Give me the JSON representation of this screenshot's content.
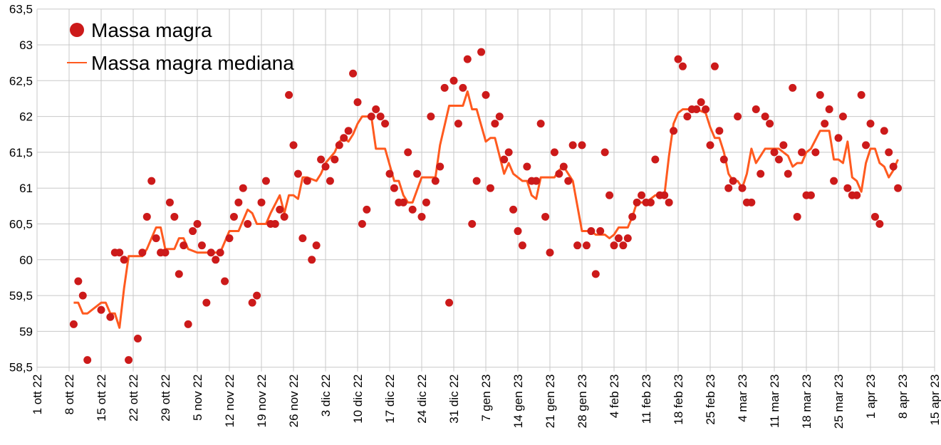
{
  "chart_data": {
    "type": "scatter",
    "title": "",
    "xlabel": "",
    "ylabel": "",
    "x_unit": "days since 1 ott 22",
    "xlim": [
      0,
      196
    ],
    "ylim": [
      58.5,
      63.5
    ],
    "grid": true,
    "legend_position": "top-left",
    "y_ticks": [
      "58,5",
      "59",
      "59,5",
      "60",
      "60,5",
      "61",
      "61,5",
      "62",
      "62,5",
      "63",
      "63,5"
    ],
    "x_ticks": [
      "1 ott 22",
      "8 ott 22",
      "15 ott 22",
      "22 ott 22",
      "29 ott 22",
      "5 nov 22",
      "12 nov 22",
      "19 nov 22",
      "26 nov 22",
      "3 dic 22",
      "10 dic 22",
      "17 dic 22",
      "24 dic 22",
      "31 dic 22",
      "7 gen 23",
      "14 gen 23",
      "21 gen 23",
      "28 gen 23",
      "4 feb 23",
      "11 feb 23",
      "18 feb 23",
      "25 feb 23",
      "4 mar 23",
      "11 mar 23",
      "18 mar 23",
      "25 mar 23",
      "1 apr 23",
      "8 apr 23",
      "15 apr 23"
    ],
    "series": [
      {
        "name": "Massa magra",
        "kind": "scatter",
        "color": "#cc1a1a",
        "points": [
          [
            8,
            59.1
          ],
          [
            9,
            59.7
          ],
          [
            10,
            59.5
          ],
          [
            11,
            58.6
          ],
          [
            14,
            59.3
          ],
          [
            16,
            59.2
          ],
          [
            17,
            60.1
          ],
          [
            18,
            60.1
          ],
          [
            19,
            60.0
          ],
          [
            20,
            58.6
          ],
          [
            22,
            58.9
          ],
          [
            23,
            60.1
          ],
          [
            24,
            60.6
          ],
          [
            25,
            61.1
          ],
          [
            26,
            60.3
          ],
          [
            27,
            60.1
          ],
          [
            28,
            60.1
          ],
          [
            29,
            60.8
          ],
          [
            30,
            60.6
          ],
          [
            31,
            59.8
          ],
          [
            32,
            60.2
          ],
          [
            33,
            59.1
          ],
          [
            34,
            60.4
          ],
          [
            35,
            60.5
          ],
          [
            36,
            60.2
          ],
          [
            37,
            59.4
          ],
          [
            38,
            60.1
          ],
          [
            39,
            60.0
          ],
          [
            40,
            60.1
          ],
          [
            41,
            59.7
          ],
          [
            42,
            60.3
          ],
          [
            43,
            60.6
          ],
          [
            44,
            60.8
          ],
          [
            45,
            61.0
          ],
          [
            46,
            60.5
          ],
          [
            47,
            59.4
          ],
          [
            48,
            59.5
          ],
          [
            49,
            60.8
          ],
          [
            50,
            61.1
          ],
          [
            51,
            60.5
          ],
          [
            52,
            60.5
          ],
          [
            53,
            60.7
          ],
          [
            54,
            60.6
          ],
          [
            55,
            62.3
          ],
          [
            56,
            61.6
          ],
          [
            57,
            61.2
          ],
          [
            58,
            60.3
          ],
          [
            59,
            61.1
          ],
          [
            60,
            60.0
          ],
          [
            61,
            60.2
          ],
          [
            62,
            61.4
          ],
          [
            63,
            61.3
          ],
          [
            64,
            61.1
          ],
          [
            65,
            61.4
          ],
          [
            66,
            61.6
          ],
          [
            67,
            61.7
          ],
          [
            68,
            61.8
          ],
          [
            69,
            62.6
          ],
          [
            70,
            62.2
          ],
          [
            71,
            60.5
          ],
          [
            72,
            60.7
          ],
          [
            73,
            62.0
          ],
          [
            74,
            62.1
          ],
          [
            75,
            62.0
          ],
          [
            76,
            61.9
          ],
          [
            77,
            61.2
          ],
          [
            78,
            61.0
          ],
          [
            79,
            60.8
          ],
          [
            80,
            60.8
          ],
          [
            81,
            61.5
          ],
          [
            82,
            60.7
          ],
          [
            83,
            61.2
          ],
          [
            84,
            60.6
          ],
          [
            85,
            60.8
          ],
          [
            86,
            62.0
          ],
          [
            87,
            61.1
          ],
          [
            88,
            61.3
          ],
          [
            89,
            62.4
          ],
          [
            90,
            59.4
          ],
          [
            91,
            62.5
          ],
          [
            92,
            61.9
          ],
          [
            93,
            62.4
          ],
          [
            94,
            62.8
          ],
          [
            95,
            60.5
          ],
          [
            96,
            61.1
          ],
          [
            97,
            62.9
          ],
          [
            98,
            62.3
          ],
          [
            99,
            61.0
          ],
          [
            100,
            61.9
          ],
          [
            101,
            62.0
          ],
          [
            102,
            61.4
          ],
          [
            103,
            61.5
          ],
          [
            104,
            60.7
          ],
          [
            105,
            60.4
          ],
          [
            106,
            60.2
          ],
          [
            107,
            61.3
          ],
          [
            108,
            61.1
          ],
          [
            109,
            61.1
          ],
          [
            110,
            61.9
          ],
          [
            111,
            60.6
          ],
          [
            112,
            60.1
          ],
          [
            113,
            61.5
          ],
          [
            114,
            61.2
          ],
          [
            115,
            61.3
          ],
          [
            116,
            61.1
          ],
          [
            117,
            61.6
          ],
          [
            118,
            60.2
          ],
          [
            119,
            61.6
          ],
          [
            120,
            60.2
          ],
          [
            121,
            60.4
          ],
          [
            122,
            59.8
          ],
          [
            123,
            60.4
          ],
          [
            124,
            61.5
          ],
          [
            125,
            60.9
          ],
          [
            126,
            60.2
          ],
          [
            127,
            60.3
          ],
          [
            128,
            60.2
          ],
          [
            129,
            60.3
          ],
          [
            130,
            60.6
          ],
          [
            131,
            60.8
          ],
          [
            132,
            60.9
          ],
          [
            133,
            60.8
          ],
          [
            134,
            60.8
          ],
          [
            135,
            61.4
          ],
          [
            136,
            60.9
          ],
          [
            137,
            60.9
          ],
          [
            138,
            60.8
          ],
          [
            139,
            61.8
          ],
          [
            140,
            62.8
          ],
          [
            141,
            62.7
          ],
          [
            142,
            62.0
          ],
          [
            143,
            62.1
          ],
          [
            144,
            62.1
          ],
          [
            145,
            62.2
          ],
          [
            146,
            62.1
          ],
          [
            147,
            61.6
          ],
          [
            148,
            62.7
          ],
          [
            149,
            61.8
          ],
          [
            150,
            61.4
          ],
          [
            151,
            61.0
          ],
          [
            152,
            61.1
          ],
          [
            153,
            62.0
          ],
          [
            154,
            61.0
          ],
          [
            155,
            60.8
          ],
          [
            156,
            60.8
          ],
          [
            157,
            62.1
          ],
          [
            158,
            61.2
          ],
          [
            159,
            62.0
          ],
          [
            160,
            61.9
          ],
          [
            161,
            61.5
          ],
          [
            162,
            61.4
          ],
          [
            163,
            61.6
          ],
          [
            164,
            61.2
          ],
          [
            165,
            62.4
          ],
          [
            166,
            60.6
          ],
          [
            167,
            61.5
          ],
          [
            168,
            60.9
          ],
          [
            169,
            60.9
          ],
          [
            170,
            61.5
          ],
          [
            171,
            62.3
          ],
          [
            172,
            61.9
          ],
          [
            173,
            62.1
          ],
          [
            174,
            61.1
          ],
          [
            175,
            61.7
          ],
          [
            176,
            62.0
          ],
          [
            177,
            61.0
          ],
          [
            178,
            60.9
          ],
          [
            179,
            60.9
          ],
          [
            180,
            62.3
          ],
          [
            181,
            61.6
          ],
          [
            182,
            61.9
          ],
          [
            183,
            60.6
          ],
          [
            184,
            60.5
          ],
          [
            185,
            61.8
          ],
          [
            186,
            61.5
          ],
          [
            187,
            61.3
          ],
          [
            188,
            61.0
          ]
        ]
      },
      {
        "name": "Massa magra mediana",
        "kind": "line",
        "color": "#ff5a1f",
        "points": [
          [
            8,
            59.4
          ],
          [
            9,
            59.4
          ],
          [
            10,
            59.25
          ],
          [
            11,
            59.25
          ],
          [
            14,
            59.4
          ],
          [
            15,
            59.4
          ],
          [
            16,
            59.25
          ],
          [
            17,
            59.25
          ],
          [
            18,
            59.05
          ],
          [
            19,
            59.6
          ],
          [
            20,
            60.05
          ],
          [
            23,
            60.05
          ],
          [
            24,
            60.15
          ],
          [
            26,
            60.45
          ],
          [
            27,
            60.45
          ],
          [
            28,
            60.15
          ],
          [
            30,
            60.15
          ],
          [
            31,
            60.3
          ],
          [
            32,
            60.3
          ],
          [
            33,
            60.15
          ],
          [
            35,
            60.1
          ],
          [
            40,
            60.1
          ],
          [
            42,
            60.4
          ],
          [
            44,
            60.4
          ],
          [
            46,
            60.7
          ],
          [
            47,
            60.65
          ],
          [
            48,
            60.5
          ],
          [
            50,
            60.5
          ],
          [
            51,
            60.65
          ],
          [
            53,
            60.9
          ],
          [
            54,
            60.65
          ],
          [
            55,
            60.9
          ],
          [
            56,
            60.9
          ],
          [
            57,
            60.85
          ],
          [
            58,
            61.15
          ],
          [
            59,
            61.15
          ],
          [
            61,
            61.1
          ],
          [
            62,
            61.2
          ],
          [
            63,
            61.35
          ],
          [
            65,
            61.5
          ],
          [
            66,
            61.65
          ],
          [
            67,
            61.7
          ],
          [
            68,
            61.65
          ],
          [
            69,
            61.75
          ],
          [
            70,
            61.9
          ],
          [
            71,
            62.0
          ],
          [
            73,
            62.0
          ],
          [
            74,
            61.55
          ],
          [
            76,
            61.55
          ],
          [
            78,
            61.1
          ],
          [
            79,
            61.1
          ],
          [
            80,
            60.9
          ],
          [
            81,
            60.8
          ],
          [
            82,
            60.8
          ],
          [
            84,
            61.15
          ],
          [
            87,
            61.15
          ],
          [
            88,
            61.6
          ],
          [
            90,
            62.15
          ],
          [
            93,
            62.15
          ],
          [
            94,
            62.35
          ],
          [
            95,
            62.1
          ],
          [
            96,
            62.1
          ],
          [
            98,
            61.65
          ],
          [
            99,
            61.7
          ],
          [
            100,
            61.7
          ],
          [
            102,
            61.2
          ],
          [
            103,
            61.35
          ],
          [
            104,
            61.2
          ],
          [
            106,
            61.1
          ],
          [
            107,
            61.1
          ],
          [
            108,
            60.9
          ],
          [
            109,
            60.85
          ],
          [
            110,
            61.15
          ],
          [
            113,
            61.15
          ],
          [
            114,
            61.25
          ],
          [
            115,
            61.3
          ],
          [
            116,
            61.2
          ],
          [
            117,
            61.1
          ],
          [
            119,
            60.4
          ],
          [
            121,
            60.4
          ],
          [
            122,
            60.35
          ],
          [
            124,
            60.35
          ],
          [
            125,
            60.3
          ],
          [
            126,
            60.35
          ],
          [
            127,
            60.45
          ],
          [
            129,
            60.45
          ],
          [
            130,
            60.6
          ],
          [
            131,
            60.8
          ],
          [
            133,
            60.8
          ],
          [
            134,
            60.85
          ],
          [
            135,
            60.9
          ],
          [
            137,
            60.9
          ],
          [
            138,
            61.45
          ],
          [
            139,
            61.9
          ],
          [
            140,
            62.05
          ],
          [
            141,
            62.1
          ],
          [
            144,
            62.1
          ],
          [
            146,
            62.05
          ],
          [
            147,
            61.85
          ],
          [
            148,
            61.7
          ],
          [
            149,
            61.7
          ],
          [
            150,
            61.5
          ],
          [
            151,
            61.2
          ],
          [
            152,
            61.1
          ],
          [
            153,
            61.1
          ],
          [
            154,
            61.0
          ],
          [
            155,
            61.2
          ],
          [
            156,
            61.55
          ],
          [
            157,
            61.35
          ],
          [
            158,
            61.45
          ],
          [
            159,
            61.55
          ],
          [
            162,
            61.55
          ],
          [
            163,
            61.5
          ],
          [
            164,
            61.45
          ],
          [
            165,
            61.3
          ],
          [
            166,
            61.35
          ],
          [
            167,
            61.35
          ],
          [
            168,
            61.5
          ],
          [
            169,
            61.55
          ],
          [
            171,
            61.8
          ],
          [
            173,
            61.8
          ],
          [
            174,
            61.4
          ],
          [
            175,
            61.4
          ],
          [
            176,
            61.35
          ],
          [
            177,
            61.65
          ],
          [
            178,
            61.15
          ],
          [
            179,
            61.1
          ],
          [
            180,
            60.95
          ],
          [
            181,
            61.35
          ],
          [
            182,
            61.55
          ],
          [
            183,
            61.55
          ],
          [
            184,
            61.35
          ],
          [
            185,
            61.3
          ],
          [
            186,
            61.15
          ],
          [
            187,
            61.25
          ],
          [
            188,
            61.4
          ]
        ]
      }
    ]
  }
}
